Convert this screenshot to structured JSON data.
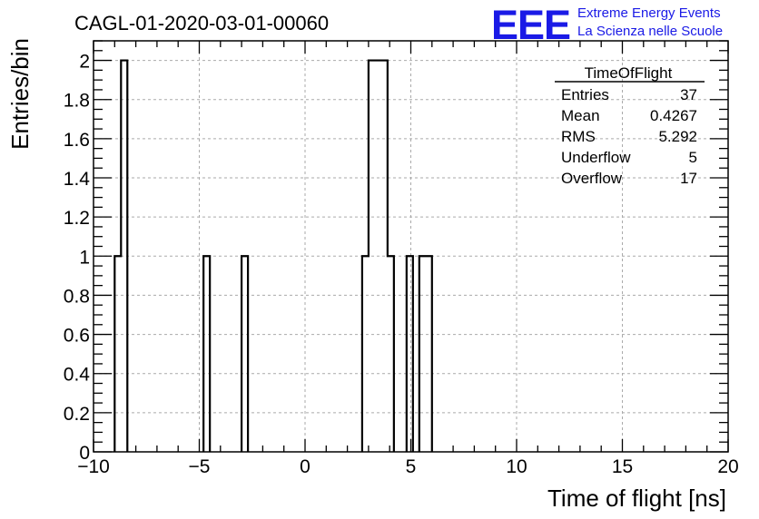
{
  "chart_data": {
    "type": "bar",
    "title": "CAGL-01-2020-03-01-00060",
    "xlabel": "Time of flight [ns]",
    "ylabel": "Entries/bin",
    "xlim": [
      -10,
      20
    ],
    "ylim": [
      0,
      2.1
    ],
    "grid": true,
    "bin_width": 0.3,
    "bins": [
      {
        "x0": -9.0,
        "x1": -8.7,
        "value": 1
      },
      {
        "x0": -8.7,
        "x1": -8.4,
        "value": 2
      },
      {
        "x0": -4.8,
        "x1": -4.5,
        "value": 1
      },
      {
        "x0": -3.0,
        "x1": -2.7,
        "value": 1
      },
      {
        "x0": 2.7,
        "x1": 3.0,
        "value": 1
      },
      {
        "x0": 3.0,
        "x1": 3.9,
        "value": 2
      },
      {
        "x0": 3.9,
        "x1": 4.2,
        "value": 1
      },
      {
        "x0": 4.8,
        "x1": 5.1,
        "value": 1
      },
      {
        "x0": 5.4,
        "x1": 6.0,
        "value": 1
      }
    ],
    "x_ticks": [
      {
        "value": -10,
        "label": "−10"
      },
      {
        "value": -5,
        "label": "−5"
      },
      {
        "value": 0,
        "label": "0"
      },
      {
        "value": 5,
        "label": "5"
      },
      {
        "value": 10,
        "label": "10"
      },
      {
        "value": 15,
        "label": "15"
      },
      {
        "value": 20,
        "label": "20"
      }
    ],
    "y_ticks": [
      {
        "value": 0,
        "label": "0"
      },
      {
        "value": 0.2,
        "label": "0.2"
      },
      {
        "value": 0.4,
        "label": "0.4"
      },
      {
        "value": 0.6,
        "label": "0.6"
      },
      {
        "value": 0.8,
        "label": "0.8"
      },
      {
        "value": 1.0,
        "label": "1"
      },
      {
        "value": 1.2,
        "label": "1.2"
      },
      {
        "value": 1.4,
        "label": "1.4"
      },
      {
        "value": 1.6,
        "label": "1.6"
      },
      {
        "value": 1.8,
        "label": "1.8"
      },
      {
        "value": 2.0,
        "label": "2"
      }
    ]
  },
  "stats_box": {
    "name": "TimeOfFlight",
    "rows": [
      {
        "label": "Entries",
        "value": "37"
      },
      {
        "label": "Mean",
        "value": "0.4267"
      },
      {
        "label": "RMS",
        "value": "5.292"
      },
      {
        "label": "Underflow",
        "value": "5"
      },
      {
        "label": "Overflow",
        "value": "17"
      }
    ]
  },
  "logo": {
    "mark": "EEE",
    "line1": "Extreme Energy Events",
    "line2": "La Scienza nelle Scuole",
    "color": "#1a1ae6"
  }
}
